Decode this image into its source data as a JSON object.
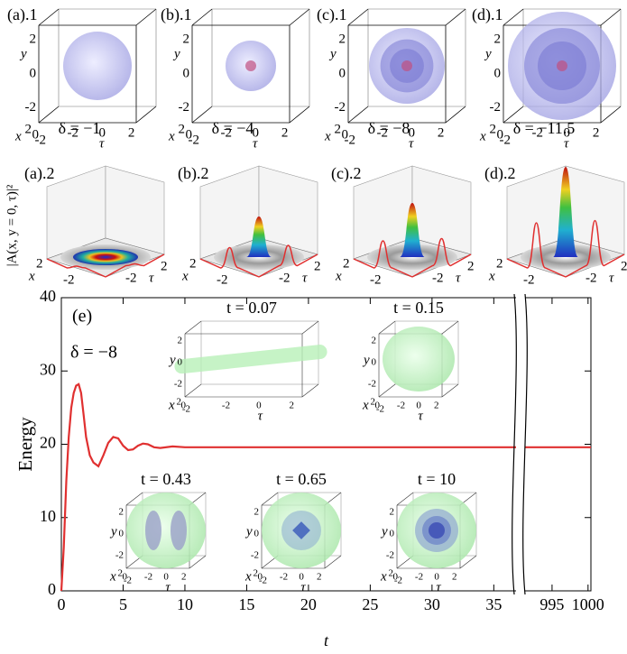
{
  "cube_ticks": [
    "2",
    "0",
    "-2"
  ],
  "axis_labels": {
    "x": "x",
    "y": "y",
    "tau": "τ"
  },
  "top_panels": [
    {
      "label": "(a).1",
      "delta": "δ = −1"
    },
    {
      "label": "(b).1",
      "delta": "δ = −4"
    },
    {
      "label": "(c).1",
      "delta": "δ = −8"
    },
    {
      "label": "(d).1",
      "delta": "δ = −11.5"
    }
  ],
  "profile_label": "|A(x, y = 0, τ)|²",
  "profile_panels": [
    {
      "label": "(a).2"
    },
    {
      "label": "(b).2"
    },
    {
      "label": "(c).2"
    },
    {
      "label": "(d).2"
    }
  ],
  "insets": [
    {
      "title": "t = 0.07"
    },
    {
      "title": "t = 0.15"
    },
    {
      "title": "t = 0.43"
    },
    {
      "title": "t = 0.65"
    },
    {
      "title": "t = 10"
    }
  ],
  "chart_data": {
    "type": "line",
    "label": "(e)",
    "annotation": "δ = −8",
    "xlabel": "t",
    "ylabel": "Energy",
    "ylim": [
      0,
      40
    ],
    "yticks": [
      0,
      10,
      20,
      30,
      40
    ],
    "x_segments": [
      {
        "xlim": [
          0,
          36.8
        ],
        "xticks": [
          0,
          5,
          10,
          15,
          20,
          25,
          30,
          35
        ]
      },
      {
        "xlim": [
          991.25,
          1000.4
        ],
        "xticks": [
          995,
          1000
        ]
      }
    ],
    "series": [
      {
        "color": "#e03030",
        "x": [
          0,
          0.2,
          0.4,
          0.6,
          0.8,
          1.0,
          1.2,
          1.4,
          1.6,
          1.8,
          2.0,
          2.3,
          2.6,
          3.0,
          3.4,
          3.8,
          4.2,
          4.6,
          5.0,
          5.4,
          5.8,
          6.2,
          6.6,
          7.0,
          7.5,
          8,
          9,
          10,
          12,
          15,
          20,
          25,
          30,
          36.8,
          991.25,
          995,
          1000,
          1000.4
        ],
        "values": [
          0,
          6,
          15,
          21,
          25,
          27,
          28,
          28.2,
          27,
          24,
          21,
          18.5,
          17.5,
          17,
          18.5,
          20.2,
          21,
          20.8,
          19.8,
          19.2,
          19.3,
          19.8,
          20.1,
          20.0,
          19.6,
          19.5,
          19.7,
          19.6,
          19.6,
          19.6,
          19.6,
          19.6,
          19.6,
          19.6,
          19.6,
          19.6,
          19.6,
          19.6
        ]
      }
    ]
  }
}
